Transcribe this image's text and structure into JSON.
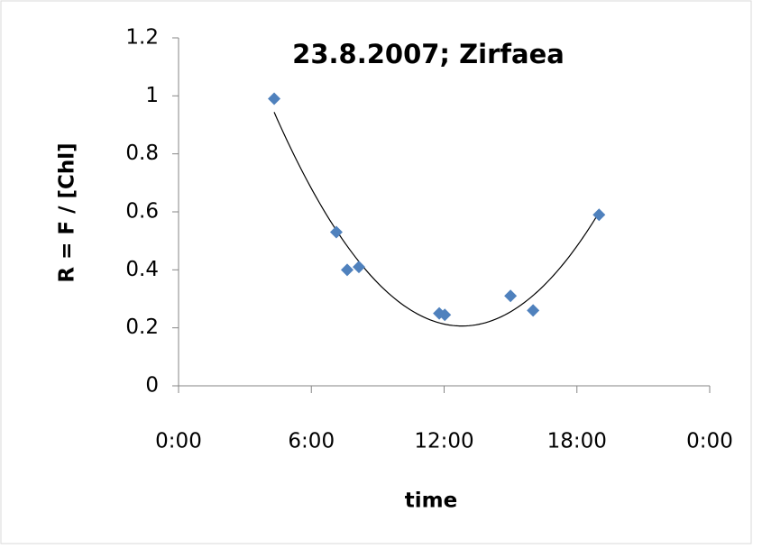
{
  "chart_data": {
    "type": "scatter",
    "title": "23.8.2007; Zirfaea",
    "x_label": "time",
    "y_label": "R = F / [Chl]",
    "series": [
      {
        "name": "R",
        "color": "#4f81bd",
        "x": [
          4.32,
          7.13,
          7.62,
          8.15,
          11.78,
          12.03,
          15.0,
          16.02,
          19.0
        ],
        "values": [
          0.99,
          0.53,
          0.4,
          0.41,
          0.25,
          0.245,
          0.31,
          0.26,
          0.59
        ]
      }
    ],
    "trendline": {
      "type": "polynomial",
      "order": 2,
      "color": "#000000"
    },
    "xlim": [
      0,
      24
    ],
    "xticks": [
      {
        "value": 0,
        "label": "0:00"
      },
      {
        "value": 6,
        "label": "6:00"
      },
      {
        "value": 12,
        "label": "12:00"
      },
      {
        "value": 18,
        "label": "18:00"
      },
      {
        "value": 24,
        "label": "0:00"
      }
    ],
    "ylim": [
      0,
      1.2
    ],
    "yticks": [
      0,
      0.2,
      0.4,
      0.6,
      0.8,
      1,
      1.2
    ],
    "grid": false
  }
}
